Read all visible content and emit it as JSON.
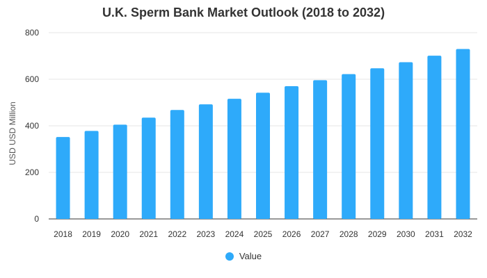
{
  "colors": {
    "series": "#2eaafa",
    "grid": "#e6e6e6",
    "axis": "#333333"
  },
  "chart_data": {
    "type": "bar",
    "title": "U.K. Sperm Bank Market Outlook (2018 to 2032)",
    "xlabel": "",
    "ylabel": "USD USD Million",
    "categories": [
      "2018",
      "2019",
      "2020",
      "2021",
      "2022",
      "2023",
      "2024",
      "2025",
      "2026",
      "2027",
      "2028",
      "2029",
      "2030",
      "2031",
      "2032"
    ],
    "series": [
      {
        "name": "Value",
        "values": [
          352,
          378,
          405,
          435,
          468,
          492,
          516,
          542,
          570,
          596,
          622,
          647,
          673,
          701,
          730
        ]
      }
    ],
    "ylim": [
      0,
      800
    ],
    "yticks": [
      "0",
      "200",
      "400",
      "600",
      "800"
    ],
    "grid": true,
    "legend": "bottom-center"
  }
}
